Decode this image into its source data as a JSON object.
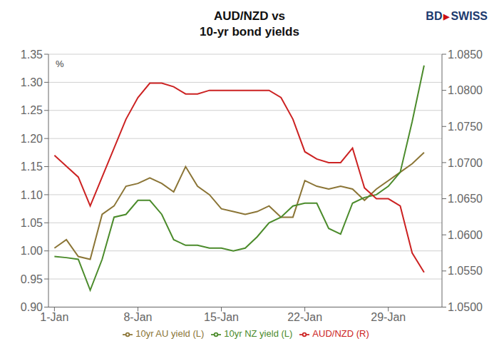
{
  "chart_data": {
    "type": "line",
    "title": "AUD/NZD vs",
    "subtitle": "10-yr bond yields",
    "ylabel": "%",
    "annotations": [
      {
        "text": "BD",
        "color": "#1C3A6E"
      },
      {
        "text": "▶",
        "color": "#CC1111"
      },
      {
        "text": "SWISS",
        "color": "#1C3A6E"
      }
    ],
    "x": [
      0,
      1,
      2,
      3,
      4,
      5,
      6,
      7,
      8,
      9,
      10,
      11,
      12,
      13,
      14,
      15,
      16,
      17,
      18,
      19,
      20,
      21,
      22,
      23,
      24,
      25,
      26,
      27,
      28,
      29,
      30,
      31
    ],
    "xlim": [
      -0.5,
      32.5
    ],
    "xticks": [
      {
        "value": 0,
        "label": "1-Jan"
      },
      {
        "value": 7,
        "label": "8-Jan"
      },
      {
        "value": 14,
        "label": "15-Jan"
      },
      {
        "value": 21,
        "label": "22-Jan"
      },
      {
        "value": 28,
        "label": "29-Jan"
      }
    ],
    "ylim": [
      0.9,
      1.35
    ],
    "yticks": [
      {
        "value": 0.9,
        "label": "0.90"
      },
      {
        "value": 0.95,
        "label": "0.95"
      },
      {
        "value": 1.0,
        "label": "1.00"
      },
      {
        "value": 1.05,
        "label": "1.05"
      },
      {
        "value": 1.1,
        "label": "1.10"
      },
      {
        "value": 1.15,
        "label": "1.15"
      },
      {
        "value": 1.2,
        "label": "1.20"
      },
      {
        "value": 1.25,
        "label": "1.25"
      },
      {
        "value": 1.3,
        "label": "1.30"
      },
      {
        "value": 1.35,
        "label": "1.35"
      }
    ],
    "y2lim": [
      1.05,
      1.085
    ],
    "y2ticks": [
      {
        "value": 1.05,
        "label": "1.0500"
      },
      {
        "value": 1.055,
        "label": "1.0550"
      },
      {
        "value": 1.06,
        "label": "1.0600"
      },
      {
        "value": 1.065,
        "label": "1.0650"
      },
      {
        "value": 1.07,
        "label": "1.0700"
      },
      {
        "value": 1.075,
        "label": "1.0750"
      },
      {
        "value": 1.08,
        "label": "1.0800"
      },
      {
        "value": 1.085,
        "label": "1.0850"
      }
    ],
    "grid": true,
    "legend": "bottom",
    "series": [
      {
        "name": "10yr AU yield (L)",
        "color": "#8B7536",
        "values": [
          1.005,
          1.02,
          0.99,
          0.985,
          1.065,
          1.08,
          1.115,
          1.12,
          1.13,
          1.12,
          1.105,
          1.15,
          1.115,
          1.1,
          1.075,
          1.07,
          1.065,
          1.07,
          1.08,
          1.06,
          1.06,
          1.125,
          1.115,
          1.11,
          1.115,
          1.11,
          1.09,
          1.11,
          1.125,
          1.14,
          1.155,
          1.175
        ]
      },
      {
        "name": "10yr NZ yield (L)",
        "color": "#4B8B2B",
        "values": [
          0.99,
          0.988,
          0.985,
          0.93,
          0.985,
          1.06,
          1.065,
          1.09,
          1.09,
          1.065,
          1.02,
          1.01,
          1.01,
          1.005,
          1.005,
          1.0,
          1.005,
          1.025,
          1.05,
          1.06,
          1.08,
          1.085,
          1.085,
          1.04,
          1.03,
          1.085,
          1.095,
          1.1,
          1.115,
          1.14,
          1.23,
          1.33
        ]
      },
      {
        "name": "AUD/NZD (R)",
        "color": "#CC2222",
        "axis": "y2",
        "values": [
          1.071,
          1.0695,
          1.068,
          1.064,
          1.068,
          1.072,
          1.076,
          1.079,
          1.081,
          1.081,
          1.0805,
          1.0795,
          1.0795,
          1.08,
          1.08,
          1.08,
          1.08,
          1.08,
          1.08,
          1.079,
          1.076,
          1.0715,
          1.0705,
          1.07,
          1.07,
          1.072,
          1.0665,
          1.065,
          1.065,
          1.064,
          1.0575,
          1.0548
        ]
      }
    ]
  }
}
